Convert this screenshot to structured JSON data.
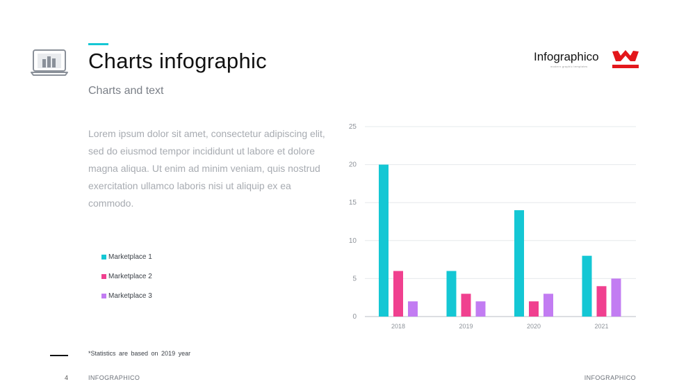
{
  "header": {
    "title": "Charts infographic",
    "subtitle": "Charts and text",
    "accent_color": "#14c7d4",
    "icon": "laptop-chart-icon"
  },
  "brand": {
    "name": "Infographico",
    "tagline": "modern graphic templates",
    "logo_icon": "crown-logo-icon",
    "logo_color": "#e3171b"
  },
  "body_text": "Lorem ipsum dolor sit amet, consectetur adipiscing elit, sed do eiusmod tempor incididunt ut labore et dolore magna aliqua. Ut enim ad minim veniam, quis nostrud exercitation ullamco laboris nisi ut aliquip ex ea commodo.",
  "footnote": "*Statistics are based on 2019 year",
  "footer": {
    "page_number": "4",
    "left_text": "INFOGRAPHICO",
    "right_text": "INFOGRAPHICO"
  },
  "chart_data": {
    "type": "bar",
    "categories": [
      "2018",
      "2019",
      "2020",
      "2021"
    ],
    "series": [
      {
        "name": "Marketplace 1",
        "color": "#14c7d4",
        "values": [
          20,
          6,
          14,
          8
        ]
      },
      {
        "name": "Marketplace 2",
        "color": "#f0408f",
        "values": [
          6,
          3,
          2,
          4
        ]
      },
      {
        "name": "Marketplace 3",
        "color": "#c27cf2",
        "values": [
          2,
          2,
          3,
          5
        ]
      }
    ],
    "ylim": [
      0,
      25
    ],
    "yticks": [
      0,
      5,
      10,
      15,
      20,
      25
    ],
    "grid": true,
    "legend_position": "left"
  }
}
